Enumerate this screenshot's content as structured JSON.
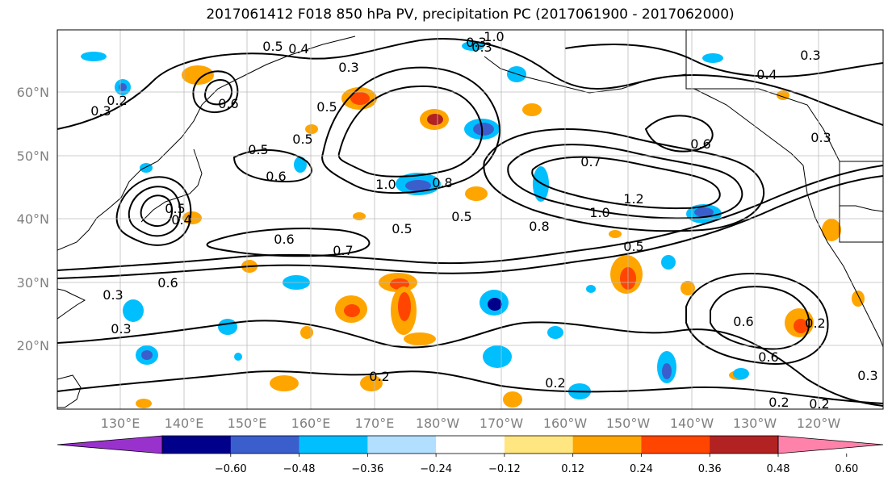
{
  "title": "2017061412 F018 850 hPa PV, precipitation PC (2017061900 - 2017062000)",
  "map": {
    "lat_labels": [
      "60°N",
      "50°N",
      "40°N",
      "30°N",
      "20°N"
    ],
    "lon_labels": [
      "130°E",
      "140°E",
      "150°E",
      "160°E",
      "170°E",
      "180°W",
      "170°W",
      "160°W",
      "150°W",
      "140°W",
      "130°W",
      "120°W"
    ],
    "contour_labels": [
      "0.5",
      "0.4",
      "0.3",
      "0.6",
      "0.3",
      "0.2",
      "0.3",
      "1.0",
      "0.3",
      "0.5",
      "0.5",
      "0.5",
      "0.6",
      "0.4",
      "0.3",
      "0.6",
      "0.7",
      "1.0",
      "0.8",
      "1.2",
      "0.5",
      "1.0",
      "0.8",
      "0.5",
      "0.6",
      "0.7",
      "0.5",
      "0.4",
      "0.3",
      "0.6",
      "0.3",
      "0.2",
      "0.2",
      "0.2",
      "0.6",
      "0.6",
      "0.5",
      "0.2",
      "0.2",
      "0.3",
      "0.3"
    ],
    "colors": {
      "land_line": "#000000",
      "grid": "#bbbbbb",
      "axis_label": "#808080"
    }
  },
  "colorbar": {
    "tick_labels": [
      "−0.60",
      "−0.48",
      "−0.36",
      "−0.24",
      "−0.12",
      "0.12",
      "0.24",
      "0.36",
      "0.48",
      "0.60"
    ],
    "colors": [
      "#9932cc",
      "#00008b",
      "#3a5fcd",
      "#00bfff",
      "#b2dfff",
      "#ffffff",
      "#ffe680",
      "#ffa500",
      "#ff4500",
      "#b22222",
      "#ff82ab"
    ]
  }
}
